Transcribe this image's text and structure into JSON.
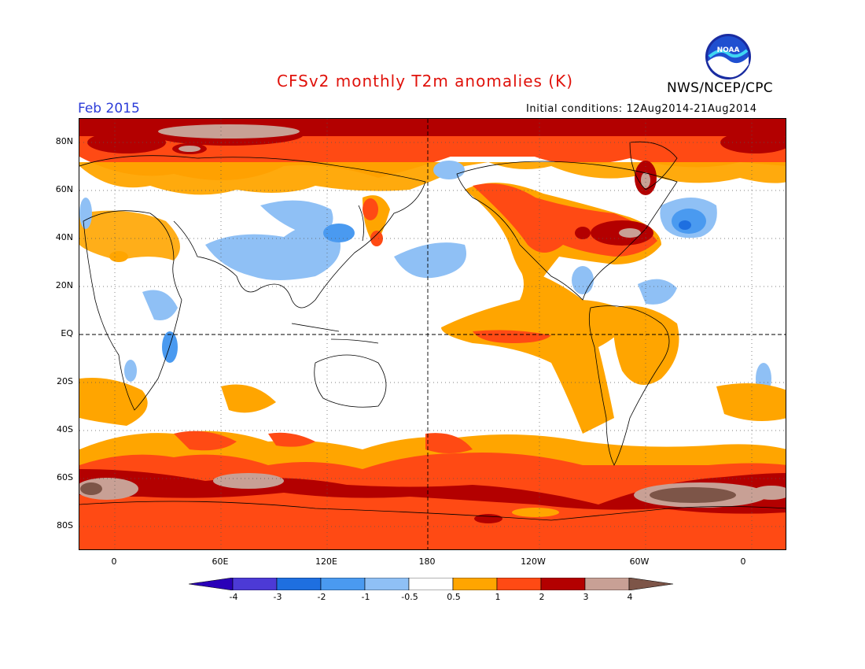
{
  "header": {
    "title": "CFSv2 monthly T2m anomalies (K)",
    "organization": "NWS/NCEP/CPC",
    "month": "Feb 2015",
    "initial_conditions": "Initial conditions: 12Aug2014-21Aug2014",
    "logo_text": "NOAA"
  },
  "map": {
    "projection": "cylindrical-equidistant",
    "central_longitude": "180",
    "lat_labels": [
      "80N",
      "60N",
      "40N",
      "20N",
      "EQ",
      "20S",
      "40S",
      "60S",
      "80S"
    ],
    "lon_labels": [
      "0",
      "60E",
      "120E",
      "180",
      "120W",
      "60W",
      "0"
    ],
    "grid": "dotted",
    "reference_lines": [
      "EQ",
      "180"
    ]
  },
  "colorbar": {
    "labels": [
      "-4",
      "-3",
      "-2",
      "-1",
      "-0.5",
      "0.5",
      "1",
      "2",
      "3",
      "4"
    ],
    "colors": [
      "#2a00b8",
      "#4c3ad6",
      "#1e6fe0",
      "#4a9af0",
      "#8fc0f5",
      "#ffffff",
      "#ffa500",
      "#ff4a14",
      "#b30000",
      "#c8a095",
      "#7d5548"
    ]
  }
}
